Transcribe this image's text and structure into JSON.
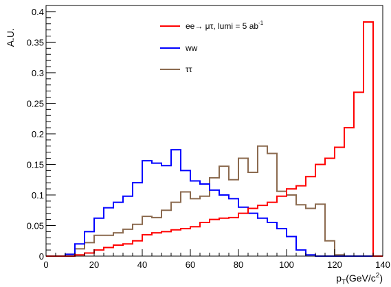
{
  "chart_data": {
    "type": "histogram",
    "title": "",
    "xlabel": "p",
    "xlabel_sub": "T",
    "xlabel_unit_pre": "(GeV/c",
    "xlabel_unit_sup": "2",
    "xlabel_unit_post": ")",
    "ylabel": "A.U.",
    "xlim": [
      0,
      140
    ],
    "ylim": [
      0,
      0.41
    ],
    "x_ticks": [
      0,
      20,
      40,
      60,
      80,
      100,
      120,
      140
    ],
    "x_tick_labels": [
      "0",
      "20",
      "40",
      "60",
      "80",
      "100",
      "120",
      "140"
    ],
    "y_ticks": [
      0,
      0.05,
      0.1,
      0.15,
      0.2,
      0.25,
      0.3,
      0.35,
      0.4
    ],
    "y_tick_labels": [
      "0",
      "0.05",
      "0.1",
      "0.15",
      "0.2",
      "0.25",
      "0.3",
      "0.35",
      "0.4"
    ],
    "bin_edges": [
      0,
      4,
      8,
      12,
      16,
      20,
      24,
      28,
      32,
      36,
      40,
      44,
      48,
      52,
      56,
      60,
      64,
      68,
      72,
      76,
      80,
      84,
      88,
      92,
      96,
      100,
      104,
      108,
      112,
      116,
      120,
      124,
      128,
      132,
      136,
      140
    ],
    "grid": false,
    "legend_position": "top-right",
    "series": [
      {
        "name": "ee→ μτ, lumi = 5 ab",
        "name_sup": "-1",
        "color": "#ff0000",
        "values": [
          0,
          0,
          0,
          0.002,
          0.005,
          0.01,
          0.014,
          0.018,
          0.02,
          0.025,
          0.035,
          0.038,
          0.04,
          0.043,
          0.045,
          0.048,
          0.055,
          0.06,
          0.062,
          0.063,
          0.07,
          0.078,
          0.083,
          0.088,
          0.098,
          0.11,
          0.115,
          0.13,
          0.15,
          0.16,
          0.178,
          0.21,
          0.268,
          0.383,
          0
        ]
      },
      {
        "name": "ww",
        "color": "#0000ff",
        "values": [
          0,
          0,
          0.003,
          0.02,
          0.04,
          0.062,
          0.079,
          0.088,
          0.098,
          0.12,
          0.156,
          0.152,
          0.148,
          0.174,
          0.14,
          0.123,
          0.118,
          0.108,
          0.1,
          0.094,
          0.08,
          0.07,
          0.062,
          0.055,
          0.045,
          0.032,
          0.01,
          0.002,
          0,
          0,
          0,
          0,
          0,
          0,
          0
        ]
      },
      {
        "name": "ττ",
        "color": "#8b6a4f",
        "values": [
          0,
          0,
          0.003,
          0.012,
          0.022,
          0.034,
          0.034,
          0.038,
          0.044,
          0.052,
          0.065,
          0.063,
          0.075,
          0.088,
          0.105,
          0.094,
          0.098,
          0.128,
          0.147,
          0.125,
          0.16,
          0.137,
          0.18,
          0.168,
          0.106,
          0.1,
          0.084,
          0.078,
          0.085,
          0.025,
          0.002,
          0,
          0,
          0,
          0
        ]
      }
    ]
  }
}
